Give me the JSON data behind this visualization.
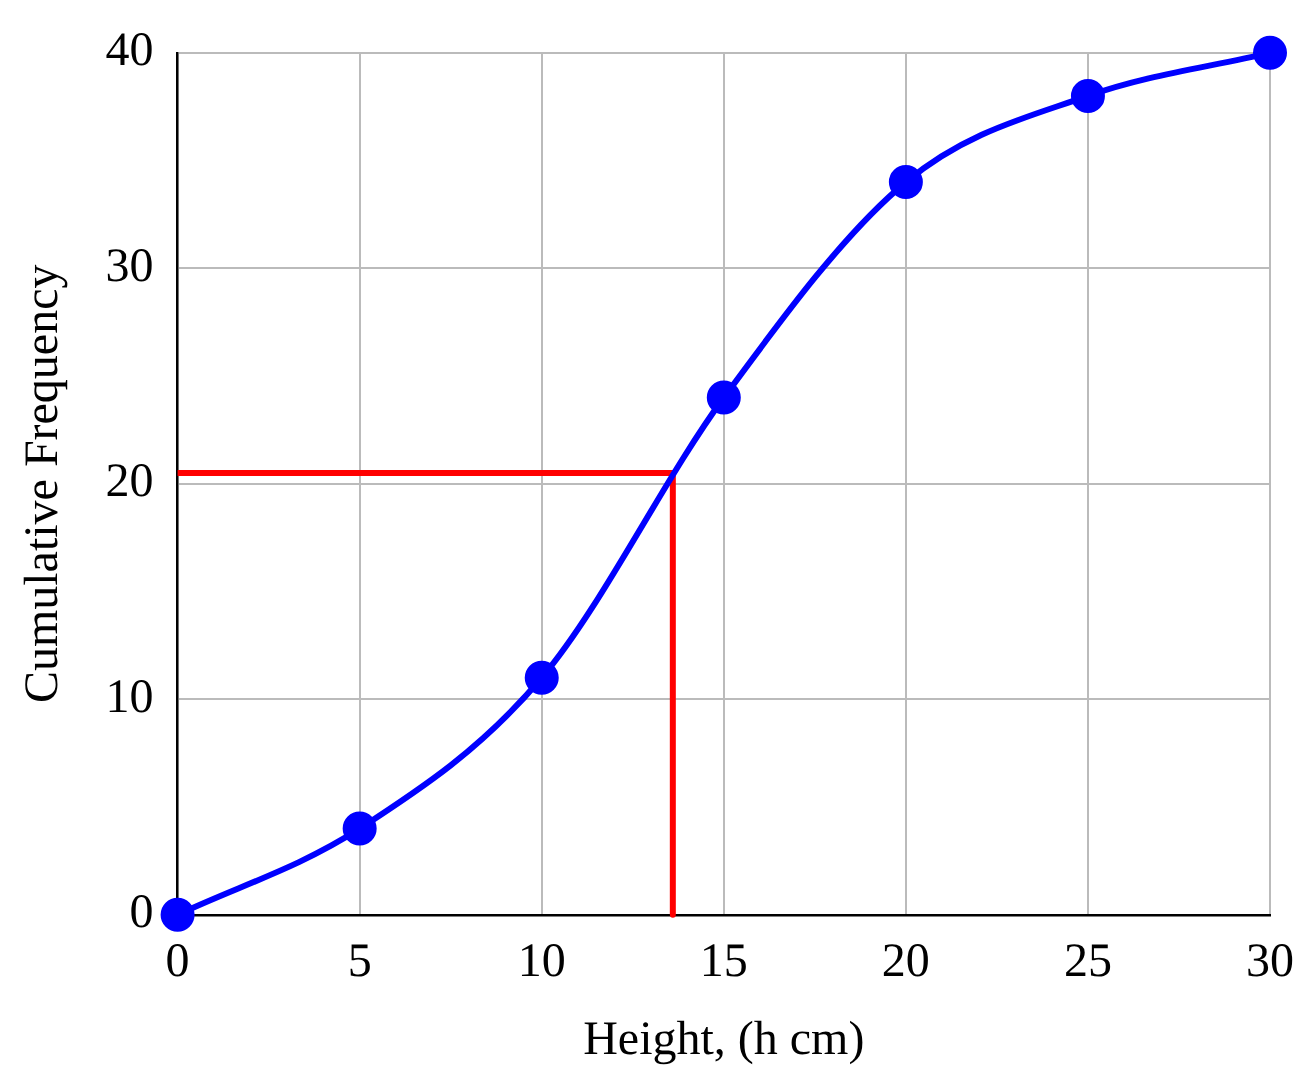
{
  "chart_data": {
    "type": "line",
    "xlabel": "Height, (h cm)",
    "ylabel": "Cumulative Frequency",
    "xlim": [
      0,
      30
    ],
    "xticks": [
      0,
      5,
      10,
      15,
      20,
      25,
      30
    ],
    "ylim": [
      0,
      40
    ],
    "yticks": [
      0,
      10,
      20,
      30,
      40
    ],
    "grid": true,
    "legend": false,
    "series": [
      {
        "color": "#0000ff",
        "x": [
          0,
          5,
          10,
          15,
          20,
          25,
          30
        ],
        "values": [
          0,
          4,
          11,
          24,
          34,
          38,
          40
        ],
        "marker": "circle"
      },
      {
        "color": "#ff0000",
        "x": [
          0,
          13.6,
          13.6
        ],
        "values": [
          20.5,
          20.5,
          0
        ],
        "marker": "none"
      }
    ]
  }
}
